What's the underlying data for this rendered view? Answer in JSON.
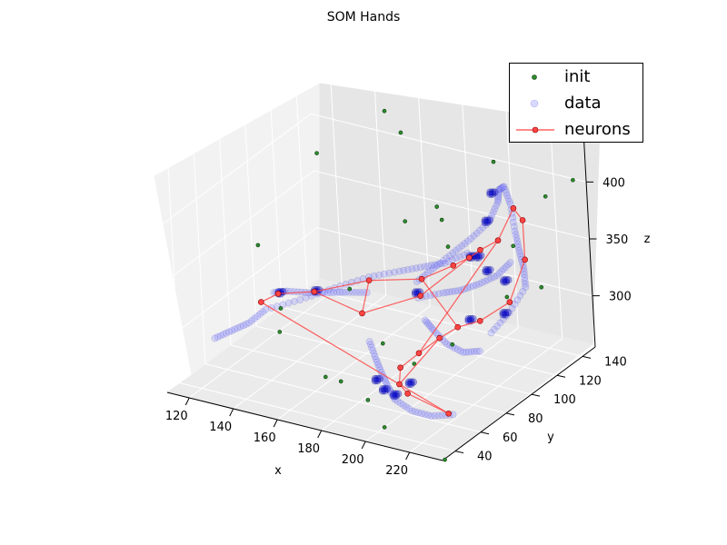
{
  "chart_data": {
    "type": "scatter3d",
    "title": "SOM Hands",
    "xlabel": "x",
    "ylabel": "y",
    "zlabel": "z",
    "xlim": [
      110,
      235
    ],
    "ylim": [
      30,
      150
    ],
    "zlim": [
      255,
      445
    ],
    "x_ticks": [
      120,
      140,
      160,
      180,
      200,
      220
    ],
    "y_ticks": [
      40,
      60,
      80,
      100,
      120,
      140
    ],
    "z_ticks": [
      300,
      350,
      400
    ],
    "grid": true,
    "legend": {
      "position": "top-right",
      "entries": [
        "init",
        "data",
        "neurons"
      ]
    },
    "colors": {
      "init": "#2e8b2e",
      "data": "#8080ff",
      "data_dense": "#0000cc",
      "neurons": "#ff4444"
    },
    "series": [
      {
        "name": "init",
        "marker": "point",
        "points": [
          [
            150,
            140,
            430
          ],
          [
            160,
            135,
            420
          ],
          [
            130,
            120,
            400
          ],
          [
            205,
            130,
            420
          ],
          [
            235,
            140,
            410
          ],
          [
            225,
            135,
            395
          ],
          [
            190,
            110,
            390
          ],
          [
            195,
            105,
            385
          ],
          [
            175,
            110,
            370
          ],
          [
            215,
            125,
            355
          ],
          [
            230,
            120,
            330
          ],
          [
            220,
            110,
            325
          ],
          [
            125,
            80,
            350
          ],
          [
            160,
            90,
            320
          ],
          [
            140,
            70,
            310
          ],
          [
            145,
            60,
            300
          ],
          [
            180,
            80,
            290
          ],
          [
            200,
            70,
            290
          ],
          [
            165,
            60,
            270
          ],
          [
            175,
            55,
            275
          ],
          [
            190,
            50,
            270
          ],
          [
            215,
            75,
            310
          ],
          [
            200,
            45,
            255
          ],
          [
            230,
            40,
            245
          ],
          [
            185,
            125,
            340
          ]
        ]
      },
      {
        "name": "data",
        "marker": "circle",
        "paths": [
          [
            [
              115,
              60,
              280
            ],
            [
              120,
              65,
              285
            ],
            [
              125,
              70,
              290
            ],
            [
              130,
              75,
              300
            ],
            [
              140,
              85,
              305
            ],
            [
              150,
              95,
              312
            ],
            [
              160,
              105,
              318
            ],
            [
              170,
              112,
              322
            ],
            [
              178,
              118,
              325
            ],
            [
              185,
              122,
              328
            ],
            [
              192,
              128,
              335
            ]
          ],
          [
            [
              125,
              90,
              300
            ],
            [
              130,
              92,
              302
            ],
            [
              138,
              95,
              302
            ],
            [
              145,
              98,
              303
            ],
            [
              152,
              100,
              305
            ],
            [
              160,
              103,
              306
            ]
          ],
          [
            [
              185,
              100,
              330
            ],
            [
              190,
              105,
              340
            ],
            [
              195,
              112,
              350
            ],
            [
              200,
              118,
              360
            ],
            [
              205,
              124,
              372
            ],
            [
              206,
              130,
              385
            ],
            [
              205,
              133,
              393
            ],
            [
              208,
              132,
              398
            ],
            [
              213,
              128,
              388
            ],
            [
              218,
              122,
              372
            ],
            [
              222,
              118,
              360
            ],
            [
              226,
              114,
              350
            ],
            [
              230,
              108,
              340
            ],
            [
              228,
              98,
              325
            ],
            [
              224,
              90,
              312
            ]
          ],
          [
            [
              180,
              70,
              300
            ],
            [
              185,
              66,
              290
            ],
            [
              190,
              62,
              282
            ],
            [
              195,
              58,
              276
            ],
            [
              200,
              54,
              272
            ],
            [
              210,
              50,
              270
            ],
            [
              220,
              48,
              272
            ],
            [
              230,
              48,
              278
            ]
          ],
          [
            [
              200,
              80,
              320
            ],
            [
              205,
              78,
              315
            ],
            [
              212,
              76,
              308
            ],
            [
              218,
              78,
              302
            ],
            [
              222,
              84,
              300
            ]
          ],
          [
            [
              190,
              92,
              325
            ],
            [
              198,
              98,
              328
            ],
            [
              204,
              102,
              330
            ],
            [
              210,
              106,
              335
            ],
            [
              216,
              110,
              342
            ],
            [
              220,
              114,
              352
            ]
          ]
        ],
        "clusters": [
          [
            127,
            92,
            300
          ],
          [
            140,
            98,
            303
          ],
          [
            190,
            58,
            282
          ],
          [
            195,
            55,
            278
          ],
          [
            200,
            55,
            276
          ],
          [
            208,
            118,
            380
          ],
          [
            205,
            128,
            395
          ],
          [
            200,
            118,
            345
          ],
          [
            205,
            115,
            350
          ],
          [
            212,
            110,
            345
          ],
          [
            220,
            110,
            340
          ],
          [
            225,
            100,
            322
          ],
          [
            215,
            90,
            320
          ],
          [
            190,
            92,
            330
          ],
          [
            203,
            62,
            282
          ]
        ]
      },
      {
        "name": "neurons",
        "marker": "circle",
        "points": [
          [
            125,
            80,
            300
          ],
          [
            127,
            90,
            300
          ],
          [
            140,
            96,
            303
          ],
          [
            160,
            105,
            315
          ],
          [
            180,
            112,
            320
          ],
          [
            190,
            120,
            330
          ],
          [
            200,
            116,
            345
          ],
          [
            204,
            118,
            352
          ],
          [
            210,
            122,
            360
          ],
          [
            213,
            130,
            383
          ],
          [
            220,
            125,
            380
          ],
          [
            228,
            112,
            360
          ],
          [
            226,
            102,
            330
          ],
          [
            218,
            92,
            318
          ],
          [
            210,
            88,
            312
          ],
          [
            205,
            82,
            305
          ],
          [
            200,
            74,
            296
          ],
          [
            196,
            66,
            288
          ],
          [
            200,
            58,
            282
          ],
          [
            206,
            54,
            280
          ],
          [
            228,
            48,
            278
          ],
          [
            170,
            82,
            310
          ],
          [
            190,
            94,
            325
          ]
        ],
        "path_order": [
          0,
          1,
          2,
          3,
          4,
          5,
          6,
          7,
          8,
          9,
          10,
          11,
          12,
          13,
          14,
          15,
          16,
          17,
          18,
          19,
          20
        ]
      }
    ]
  }
}
